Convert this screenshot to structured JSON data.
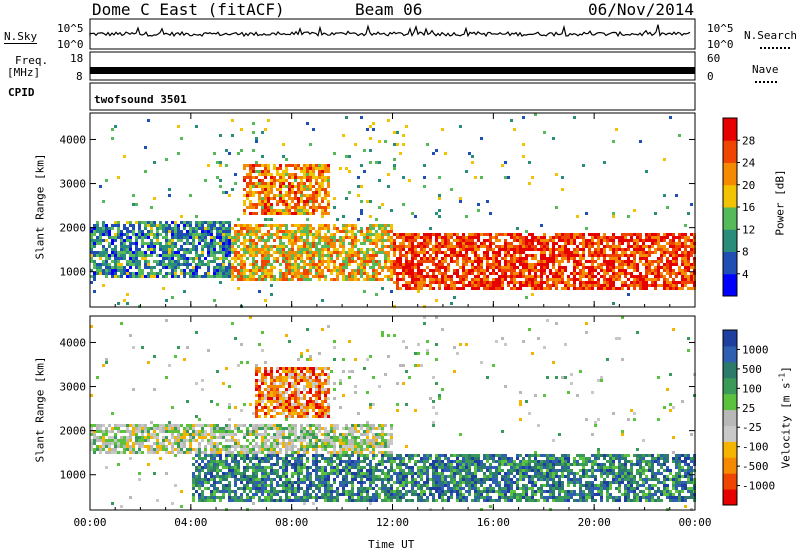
{
  "header": {
    "station": "Dome C East (fitACF)",
    "beam": "Beam 06",
    "date": "06/Nov/2014"
  },
  "strips": {
    "nsky": {
      "left_label": "N.Sky",
      "left_ticks": [
        "10^5",
        "10^0"
      ],
      "right_ticks": [
        "10^5",
        "10^0"
      ],
      "right_label": "N.Search"
    },
    "freq": {
      "left_label_line1": "Freq.",
      "left_label_line2": "[MHz]",
      "left_ticks": [
        "18",
        "8"
      ],
      "right_ticks": [
        "60",
        "0"
      ],
      "right_label": "Nave"
    },
    "cpid": {
      "left_label": "CPID",
      "text": "twofsound 3501"
    }
  },
  "colors": {
    "power": [
      "#0000ff",
      "#1f4fb4",
      "#2a8c7a",
      "#56b95a",
      "#f2c300",
      "#f58a00",
      "#f04500",
      "#e60000"
    ],
    "velocity": [
      "#e60000",
      "#f04500",
      "#f58a00",
      "#f5b400",
      "#c8c8c8",
      "#b8b8b8",
      "#5ac23c",
      "#3a9a5a",
      "#2c7a6a",
      "#2e5fb0",
      "#1f3fa0"
    ]
  },
  "chart_data": [
    {
      "type": "heatmap",
      "title": "",
      "xlabel": "Time UT",
      "ylabel": "Slant Range [km]",
      "x_ticks": [
        "00:00",
        "04:00",
        "08:00",
        "12:00",
        "16:00",
        "20:00",
        "00:00"
      ],
      "y_ticks": [
        "1000",
        "2000",
        "3000",
        "4000"
      ],
      "ylim": [
        200,
        4600
      ],
      "colorbar": {
        "label": "Power [dB]",
        "ticks": [
          "4",
          "8",
          "12",
          "16",
          "20",
          "24",
          "28"
        ],
        "range": [
          0,
          32
        ]
      },
      "regions": [
        {
          "t0": 0.0,
          "t1": 5.5,
          "r0": 900,
          "r1": 2200,
          "level": 0.3
        },
        {
          "t0": 5.5,
          "t1": 12.0,
          "r0": 800,
          "r1": 2100,
          "level": 0.6
        },
        {
          "t0": 12.0,
          "t1": 24.0,
          "r0": 600,
          "r1": 1900,
          "level": 0.85
        },
        {
          "t0": 6.0,
          "t1": 9.5,
          "r0": 2300,
          "r1": 3500,
          "level": 0.7
        }
      ]
    },
    {
      "type": "heatmap",
      "title": "",
      "xlabel": "Time UT",
      "ylabel": "Slant Range [km]",
      "x_ticks": [
        "00:00",
        "04:00",
        "08:00",
        "12:00",
        "16:00",
        "20:00",
        "00:00"
      ],
      "y_ticks": [
        "1000",
        "2000",
        "3000",
        "4000"
      ],
      "ylim": [
        200,
        4600
      ],
      "colorbar": {
        "label": "Velocity [m s^-1]",
        "label_main": "Velocity [m s",
        "label_exp": "-1",
        "label_close": "]",
        "ticks": [
          "1000",
          "500",
          "100",
          "25",
          "-25",
          "-100",
          "-500",
          "-1000"
        ],
        "range": [
          -1000,
          1000
        ]
      },
      "regions": [
        {
          "t0": 0.0,
          "t1": 12.0,
          "r0": 1500,
          "r1": 2200,
          "level": 0.0
        },
        {
          "t0": 4.0,
          "t1": 24.0,
          "r0": 400,
          "r1": 1500,
          "level": -0.6
        },
        {
          "t0": 6.5,
          "t1": 9.5,
          "r0": 2300,
          "r1": 3500,
          "level": 0.6
        }
      ]
    }
  ]
}
